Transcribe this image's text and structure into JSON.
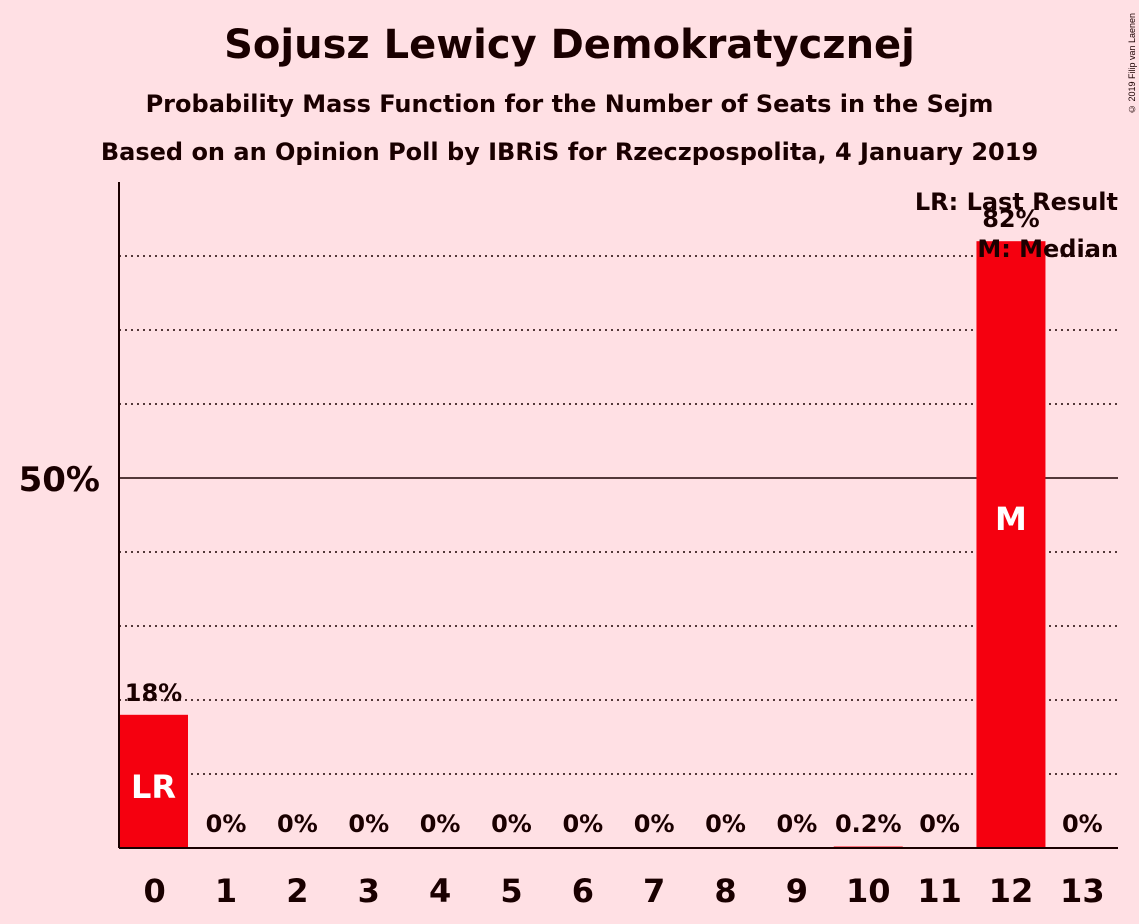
{
  "title": "Sojusz Lewicy Demokratycznej",
  "subtitle1": "Probability Mass Function for the Number of Seats in the Sejm",
  "subtitle2": "Based on an Opinion Poll by IBRiS for Rzeczpospolita, 4 January 2019",
  "copyright": "© 2019 Filip van Laenen",
  "legend": {
    "lr": "LR: Last Result",
    "m": "M: Median"
  },
  "colors": {
    "bar": "#F5000F",
    "background": "#FFE0E4",
    "text": "#1a0000"
  },
  "chart_data": {
    "type": "bar",
    "categories": [
      "0",
      "1",
      "2",
      "3",
      "4",
      "5",
      "6",
      "7",
      "8",
      "9",
      "10",
      "11",
      "12",
      "13"
    ],
    "values": [
      18,
      0,
      0,
      0,
      0,
      0,
      0,
      0,
      0,
      0,
      0.2,
      0,
      82,
      0
    ],
    "labels": [
      "18%",
      "0%",
      "0%",
      "0%",
      "0%",
      "0%",
      "0%",
      "0%",
      "0%",
      "0%",
      "0.2%",
      "0%",
      "82%",
      "0%"
    ],
    "markers": {
      "0": "LR",
      "12": "M"
    },
    "ylim": [
      0,
      90
    ],
    "yticks": [
      {
        "value": 50,
        "label": "50%"
      }
    ],
    "gridlines": [
      10,
      20,
      30,
      40,
      60,
      70,
      80
    ],
    "legend_position": "top-right"
  }
}
